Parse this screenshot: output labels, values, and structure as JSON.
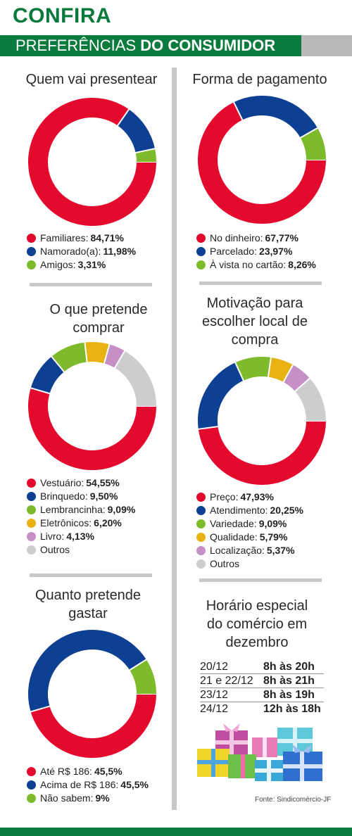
{
  "header": {
    "title": "CONFIRA",
    "band_light": "PREFERÊNCIAS",
    "band_bold": "DO CONSUMIDOR"
  },
  "colors": {
    "green": "#0b7a3d",
    "red": "#e30a2d",
    "blue": "#0d3f92",
    "lime": "#7dbb2c",
    "yellow": "#e8b312",
    "purple": "#c490c6",
    "gray": "#cdcdcd"
  },
  "chart_data": [
    {
      "type": "pie",
      "title": "Quem vai presentear",
      "series": [
        {
          "label": "Familiares:",
          "value_text": "84,71%",
          "value": 84.71,
          "color": "#e30a2d"
        },
        {
          "label": "Namorado(a):",
          "value_text": "11,98%",
          "value": 11.98,
          "color": "#0d3f92"
        },
        {
          "label": "Amigos:",
          "value_text": "3,31%",
          "value": 3.31,
          "color": "#7dbb2c"
        }
      ]
    },
    {
      "type": "pie",
      "title": "Forma de pagamento",
      "series": [
        {
          "label": "No dinheiro:",
          "value_text": "67,77%",
          "value": 67.77,
          "color": "#e30a2d"
        },
        {
          "label": "Parcelado:",
          "value_text": "23,97%",
          "value": 23.97,
          "color": "#0d3f92"
        },
        {
          "label": "À vista no cartão:",
          "value_text": "8,26%",
          "value": 8.26,
          "color": "#7dbb2c"
        }
      ]
    },
    {
      "type": "pie",
      "title": "O que pretende comprar",
      "series": [
        {
          "label": "Vestuário:",
          "value_text": "54,55%",
          "value": 54.55,
          "color": "#e30a2d"
        },
        {
          "label": "Brinquedo:",
          "value_text": "9,50%",
          "value": 9.5,
          "color": "#0d3f92"
        },
        {
          "label": "Lembrancinha:",
          "value_text": "9,09%",
          "value": 9.09,
          "color": "#7dbb2c"
        },
        {
          "label": "Eletrônicos:",
          "value_text": "6,20%",
          "value": 6.2,
          "color": "#e8b312"
        },
        {
          "label": "Livro:",
          "value_text": "4,13%",
          "value": 4.13,
          "color": "#c490c6"
        },
        {
          "label": "Outros",
          "value_text": "",
          "value": 16.53,
          "color": "#cdcdcd"
        }
      ]
    },
    {
      "type": "pie",
      "title": "Motivação para escolher local de compra",
      "series": [
        {
          "label": "Preço:",
          "value_text": "47,93%",
          "value": 47.93,
          "color": "#e30a2d"
        },
        {
          "label": "Atendimento:",
          "value_text": "20,25%",
          "value": 20.25,
          "color": "#0d3f92"
        },
        {
          "label": "Variedade:",
          "value_text": "9,09%",
          "value": 9.09,
          "color": "#7dbb2c"
        },
        {
          "label": "Qualidade:",
          "value_text": "5,79%",
          "value": 5.79,
          "color": "#e8b312"
        },
        {
          "label": "Localização:",
          "value_text": "5,37%",
          "value": 5.37,
          "color": "#c490c6"
        },
        {
          "label": "Outros",
          "value_text": "",
          "value": 11.57,
          "color": "#cdcdcd"
        }
      ]
    },
    {
      "type": "pie",
      "title": "Quanto pretende gastar",
      "series": [
        {
          "label": "Até R$ 186:",
          "value_text": "45,5%",
          "value": 45.5,
          "color": "#e30a2d"
        },
        {
          "label": "Acima de R$ 186:",
          "value_text": "45,5%",
          "value": 45.5,
          "color": "#0d3f92"
        },
        {
          "label": "Não sabem:",
          "value_text": "9%",
          "value": 9,
          "color": "#7dbb2c"
        }
      ]
    }
  ],
  "schedule": {
    "title": "Horário especial do comércio em dezembro",
    "rows": [
      {
        "date": "20/12",
        "time": "8h às 20h"
      },
      {
        "date": "21 e 22/12",
        "time": "8h às 21h"
      },
      {
        "date": "23/12",
        "time": "8h às 19h"
      },
      {
        "date": "24/12",
        "time": "12h às 18h"
      }
    ]
  },
  "source": "Fonte: Sindicomércio-JF"
}
